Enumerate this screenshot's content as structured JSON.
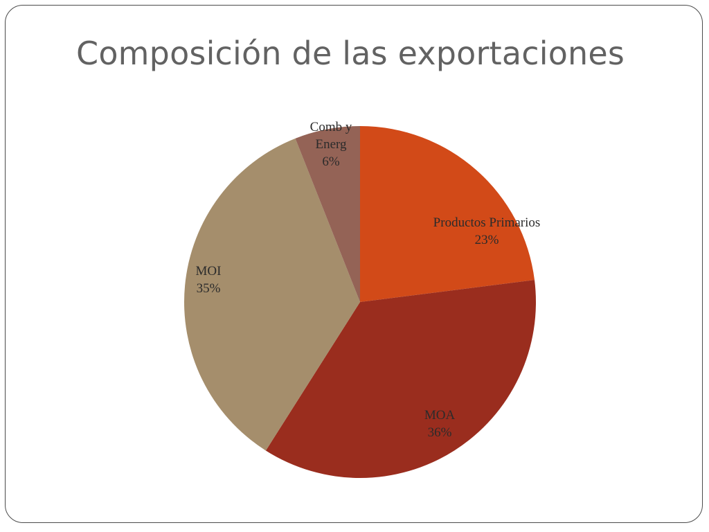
{
  "slide": {
    "title": "Composición de las exportaciones"
  },
  "chart_data": {
    "type": "pie",
    "title": "",
    "start_angle_deg": 0,
    "direction": "clockwise",
    "slices": [
      {
        "label": [
          "Productos Primarios"
        ],
        "percent_label": "23%",
        "value": 23,
        "color": "#D24A18"
      },
      {
        "label": [
          "MOA"
        ],
        "percent_label": "36%",
        "value": 36,
        "color": "#9A2D1E"
      },
      {
        "label": [
          "MOI"
        ],
        "percent_label": "35%",
        "value": 35,
        "color": "#A58E6C"
      },
      {
        "label": [
          "Comb y",
          "Energ"
        ],
        "percent_label": "6%",
        "value": 6,
        "color": "#946356"
      }
    ]
  }
}
